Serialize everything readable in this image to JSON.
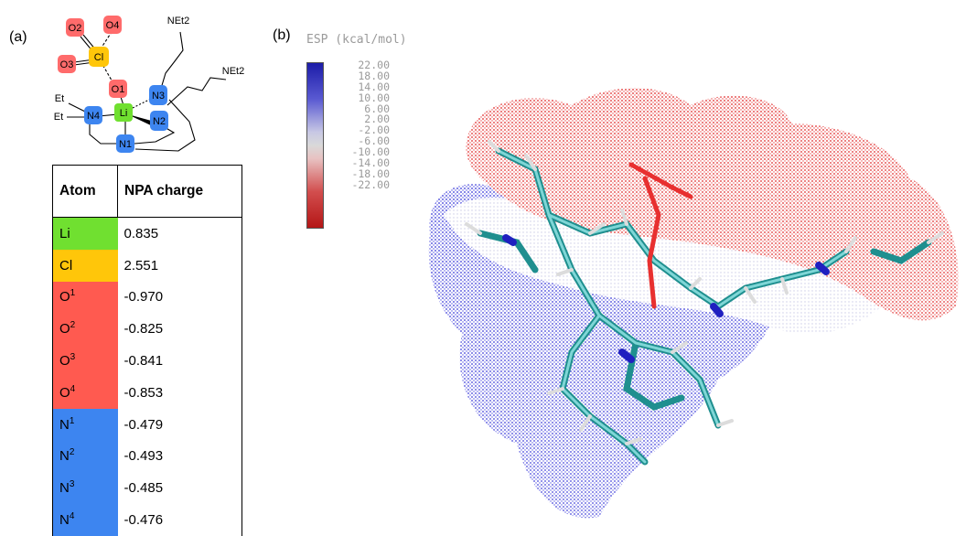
{
  "panel_labels": {
    "a": "(a)",
    "b": "(b)"
  },
  "scheme": {
    "oxygens": [
      "O2",
      "O4",
      "O3",
      "O1"
    ],
    "chlorine": "Cl",
    "lithium": "Li",
    "nitrogens": [
      "N4",
      "N3",
      "N2",
      "N1"
    ],
    "substituents": [
      "NEt2",
      "NEt2",
      "Et",
      "Et"
    ]
  },
  "table": {
    "headers": [
      "Atom",
      "NPA charge"
    ],
    "rows": [
      {
        "atom": "Li",
        "sup": "",
        "charge": "0.835",
        "color": "#70e030"
      },
      {
        "atom": "Cl",
        "sup": "",
        "charge": "2.551",
        "color": "#ffc60a"
      },
      {
        "atom": "O",
        "sup": "1",
        "charge": "-0.970",
        "color": "#ff5a50"
      },
      {
        "atom": "O",
        "sup": "2",
        "charge": "-0.825",
        "color": "#ff5a50"
      },
      {
        "atom": "O",
        "sup": "3",
        "charge": "-0.841",
        "color": "#ff5a50"
      },
      {
        "atom": "O",
        "sup": "4",
        "charge": "-0.853",
        "color": "#ff5a50"
      },
      {
        "atom": "N",
        "sup": "1",
        "charge": "-0.479",
        "color": "#3d85f0"
      },
      {
        "atom": "N",
        "sup": "2",
        "charge": "-0.493",
        "color": "#3d85f0"
      },
      {
        "atom": "N",
        "sup": "3",
        "charge": "-0.485",
        "color": "#3d85f0"
      },
      {
        "atom": "N",
        "sup": "4",
        "charge": "-0.476",
        "color": "#3d85f0"
      }
    ]
  },
  "esp_legend": {
    "title": "ESP (kcal/mol)",
    "ticks": [
      "22.00",
      "18.00",
      "14.00",
      "10.00",
      "6.00",
      "2.00",
      "-2.00",
      "-6.00",
      "-10.00",
      "-14.00",
      "-18.00",
      "-22.00"
    ],
    "colors": {
      "positive": "#1c1ca8",
      "neutral": "#d9d9d9",
      "negative": "#b41616"
    }
  }
}
